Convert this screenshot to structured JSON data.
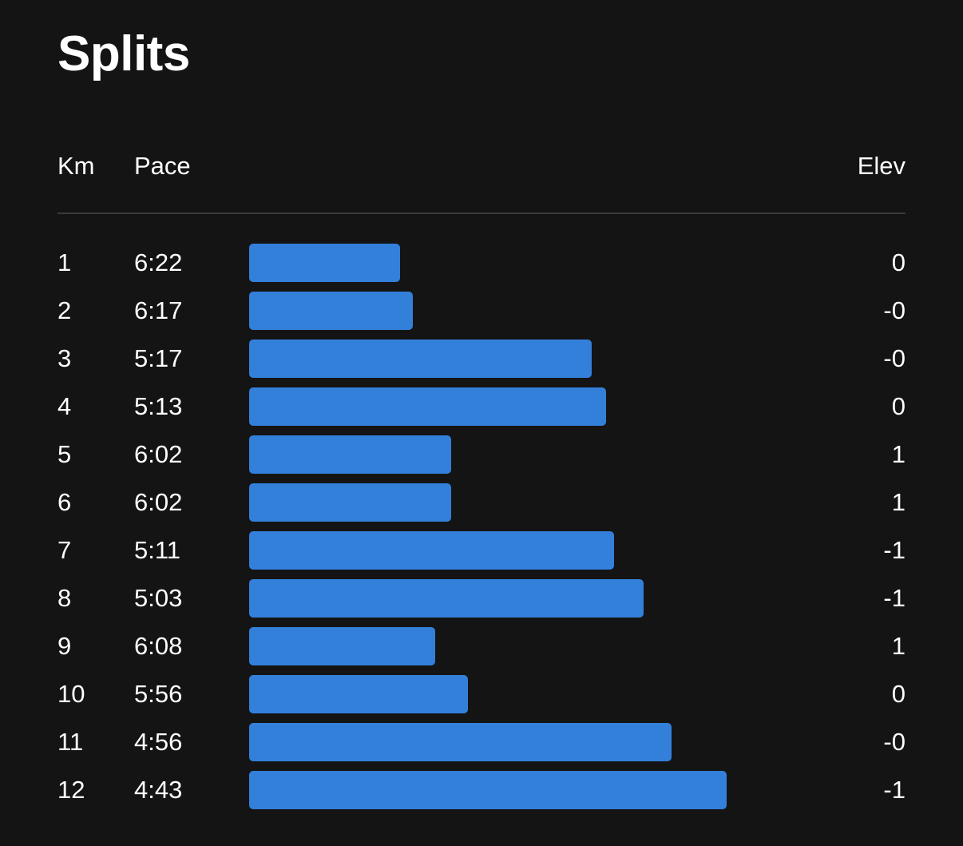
{
  "page": {
    "title": "Splits"
  },
  "columns": {
    "km": "Km",
    "pace": "Pace",
    "elev": "Elev"
  },
  "colors": {
    "background": "#141414",
    "bar": "#3380db",
    "divider": "#3a3a3a",
    "text": "#ffffff"
  },
  "chart_data": {
    "type": "bar",
    "orientation": "horizontal",
    "title": "Splits",
    "categories": [
      "1",
      "2",
      "3",
      "4",
      "5",
      "6",
      "7",
      "8",
      "9",
      "10",
      "11",
      "12"
    ],
    "series": [
      {
        "name": "Pace",
        "values": [
          "6:22",
          "6:17",
          "5:17",
          "5:13",
          "6:02",
          "6:02",
          "5:11",
          "5:03",
          "6:08",
          "5:56",
          "4:56",
          "4:43"
        ],
        "speed_km_per_h": [
          9.42,
          9.55,
          11.36,
          11.5,
          9.94,
          9.94,
          11.58,
          11.88,
          9.78,
          10.11,
          12.16,
          12.72
        ]
      },
      {
        "name": "Elev",
        "values": [
          "0",
          "-0",
          "-0",
          "0",
          "1",
          "1",
          "-1",
          "-1",
          "1",
          "0",
          "-0",
          "-1"
        ]
      }
    ],
    "xlim": [
      7.9,
      13.22
    ],
    "grid": false,
    "legend": "none"
  }
}
